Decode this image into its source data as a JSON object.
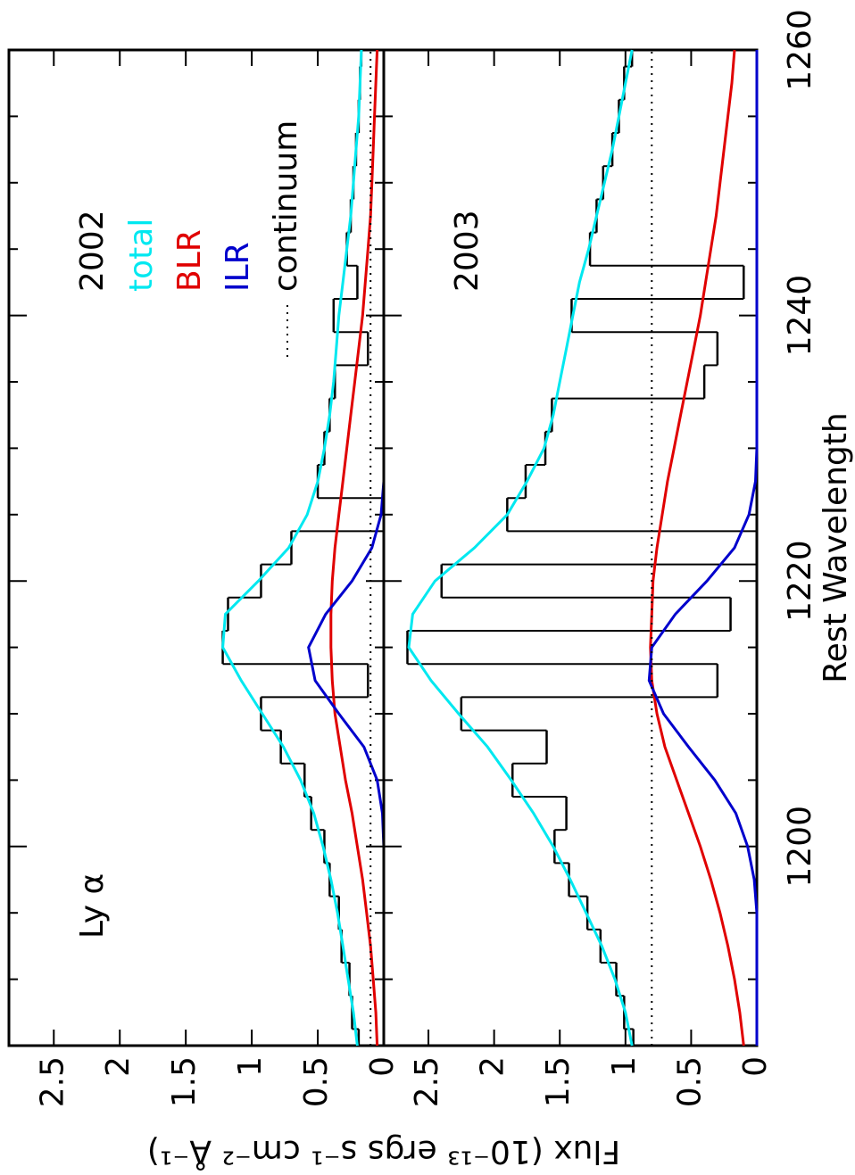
{
  "chart_data": {
    "type": "line",
    "xlabel": "Rest Wavelength",
    "ylabel": "Flux (10⁻¹³ ergs s⁻¹ cm⁻² Å⁻¹)",
    "x": [
      1185,
      1187.5,
      1190,
      1192.5,
      1195,
      1197.5,
      1200,
      1202.5,
      1205,
      1207.5,
      1210,
      1212.5,
      1215,
      1217.5,
      1220,
      1222.5,
      1225,
      1227.5,
      1230,
      1232.5,
      1235,
      1237.5,
      1240,
      1242.5,
      1245,
      1247.5,
      1250,
      1252.5,
      1255,
      1257.5,
      1260
    ],
    "xlim": [
      1185,
      1260
    ],
    "xticks": [
      1200,
      1220,
      1240,
      1260
    ],
    "xminorticks": [
      1190,
      1195,
      1205,
      1210,
      1215,
      1225,
      1230,
      1235,
      1245,
      1250,
      1255
    ],
    "panels": [
      {
        "title": "2002",
        "annotation": "Ly α",
        "ylim": [
          0,
          2.84
        ],
        "yticks": [
          0,
          0.5,
          1,
          1.5,
          2,
          2.5
        ],
        "observed": [
          0.19,
          0.24,
          0.26,
          0.32,
          0.34,
          0.41,
          0.45,
          0.55,
          0.6,
          0.78,
          0.93,
          0.12,
          1.22,
          1.18,
          0.93,
          0.7,
          0.0,
          0.5,
          0.45,
          0.41,
          0.37,
          0.12,
          0.38,
          0.2,
          0.28,
          0.25,
          0.23,
          0.21,
          0.19,
          0.18,
          0.17
        ],
        "series": [
          {
            "name": "total",
            "color": "#00e8f0",
            "values": [
              0.2,
              0.23,
              0.27,
              0.31,
              0.35,
              0.4,
              0.46,
              0.53,
              0.63,
              0.76,
              0.92,
              1.08,
              1.22,
              1.2,
              0.95,
              0.72,
              0.58,
              0.5,
              0.45,
              0.41,
              0.38,
              0.36,
              0.34,
              0.31,
              0.28,
              0.25,
              0.23,
              0.21,
              0.19,
              0.18,
              0.17
            ]
          },
          {
            "name": "BLR",
            "color": "#e00000",
            "values": [
              0.05,
              0.06,
              0.08,
              0.1,
              0.13,
              0.16,
              0.2,
              0.24,
              0.29,
              0.33,
              0.37,
              0.39,
              0.4,
              0.4,
              0.39,
              0.37,
              0.34,
              0.31,
              0.28,
              0.25,
              0.22,
              0.19,
              0.16,
              0.14,
              0.12,
              0.1,
              0.09,
              0.08,
              0.07,
              0.06,
              0.05
            ]
          },
          {
            "name": "ILR",
            "color": "#0000cc",
            "values": [
              0,
              0,
              0,
              0,
              0,
              0,
              0,
              0.01,
              0.05,
              0.15,
              0.34,
              0.52,
              0.57,
              0.44,
              0.24,
              0.09,
              0.02,
              0,
              0,
              0,
              0,
              0,
              0,
              0,
              0,
              0,
              0,
              0,
              0,
              0,
              0
            ]
          },
          {
            "name": "continuum",
            "color": "#000000",
            "dotted": true,
            "values": [
              0.1,
              0.1,
              0.1,
              0.1,
              0.1,
              0.1,
              0.1,
              0.1,
              0.1,
              0.1,
              0.1,
              0.1,
              0.1,
              0.1,
              0.1,
              0.1,
              0.1,
              0.1,
              0.1,
              0.1,
              0.1,
              0.1,
              0.1,
              0.1,
              0.1,
              0.1,
              0.1,
              0.1,
              0.1,
              0.1,
              0.1
            ]
          }
        ]
      },
      {
        "title": "2003",
        "ylim": [
          0,
          2.84
        ],
        "yticks": [
          0,
          0.5,
          1,
          1.5,
          2,
          2.5
        ],
        "observed": [
          0.94,
          1.01,
          1.07,
          1.19,
          1.29,
          1.43,
          1.54,
          1.45,
          1.86,
          1.6,
          2.25,
          0.3,
          2.66,
          0.2,
          2.4,
          0.0,
          1.9,
          1.76,
          1.61,
          1.56,
          0.4,
          0.3,
          1.41,
          0.1,
          1.27,
          1.22,
          1.17,
          1.1,
          1.05,
          1.01,
          0.95
        ],
        "series": [
          {
            "name": "total",
            "color": "#00e8f0",
            "values": [
              0.95,
              1.0,
              1.08,
              1.18,
              1.3,
              1.42,
              1.55,
              1.7,
              1.87,
              2.05,
              2.27,
              2.48,
              2.65,
              2.62,
              2.45,
              2.15,
              1.9,
              1.75,
              1.62,
              1.55,
              1.5,
              1.45,
              1.4,
              1.35,
              1.28,
              1.22,
              1.16,
              1.1,
              1.05,
              1.0,
              0.95
            ]
          },
          {
            "name": "BLR",
            "color": "#e00000",
            "values": [
              0.1,
              0.13,
              0.17,
              0.22,
              0.28,
              0.35,
              0.43,
              0.52,
              0.61,
              0.7,
              0.76,
              0.8,
              0.81,
              0.8,
              0.79,
              0.76,
              0.72,
              0.68,
              0.63,
              0.58,
              0.53,
              0.48,
              0.43,
              0.39,
              0.35,
              0.31,
              0.28,
              0.25,
              0.22,
              0.19,
              0.17
            ]
          },
          {
            "name": "ILR",
            "color": "#0000cc",
            "values": [
              0,
              0,
              0,
              0,
              0,
              0.02,
              0.07,
              0.16,
              0.32,
              0.52,
              0.71,
              0.82,
              0.8,
              0.62,
              0.38,
              0.17,
              0.06,
              0.01,
              0,
              0,
              0,
              0,
              0,
              0,
              0,
              0,
              0,
              0,
              0,
              0,
              0
            ]
          },
          {
            "name": "continuum",
            "color": "#000000",
            "dotted": true,
            "values": [
              0.8,
              0.8,
              0.8,
              0.8,
              0.8,
              0.8,
              0.8,
              0.8,
              0.8,
              0.8,
              0.8,
              0.8,
              0.8,
              0.8,
              0.8,
              0.8,
              0.8,
              0.8,
              0.8,
              0.8,
              0.8,
              0.8,
              0.8,
              0.8,
              0.8,
              0.8,
              0.8,
              0.8,
              0.8,
              0.8,
              0.8
            ]
          }
        ]
      }
    ]
  }
}
